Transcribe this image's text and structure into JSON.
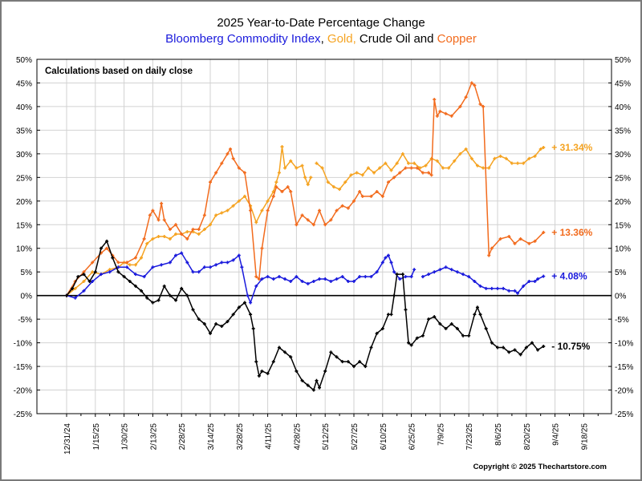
{
  "chart_data": {
    "type": "line",
    "title": "2025 Year-to-Date Percentage Change",
    "subtitle_parts": [
      {
        "text": "Bloomberg Commodity Index",
        "color": "#1a1adc"
      },
      {
        "text": ", ",
        "color": "#000000"
      },
      {
        "text": "Gold,",
        "color": "#f5a321"
      },
      {
        "text": " Crude Oil and ",
        "color": "#000000"
      },
      {
        "text": "Copper",
        "color": "#f26b1d"
      }
    ],
    "annotation": "Calculations based on daily close",
    "copyright": "Copyright © 2025 Thechartstore.com",
    "xlabel": "",
    "ylabel": "",
    "x_unit": "trading days since 12/31/24",
    "xlim": [
      -10,
      190
    ],
    "ylim": [
      -25,
      50
    ],
    "grid": true,
    "y_ticks": [
      "50%",
      "45%",
      "40%",
      "35%",
      "30%",
      "25%",
      "20%",
      "15%",
      "10%",
      "5%",
      "0%",
      "-5%",
      "-10%",
      "-15%",
      "-20%",
      "-25%"
    ],
    "x_tick_labels": [
      "12/31/24",
      "1/15/25",
      "1/30/25",
      "2/13/25",
      "2/28/25",
      "3/14/25",
      "3/28/25",
      "4/11/25",
      "4/28/25",
      "5/12/25",
      "5/27/25",
      "6/10/25",
      "6/25/25",
      "7/9/25",
      "7/23/25",
      "8/6/25",
      "8/20/25",
      "9/4/25",
      "9/18/25"
    ],
    "series": [
      {
        "name": "Gold",
        "color": "#f5a321",
        "end_label": "+ 31.34%",
        "x": [
          0,
          3,
          6,
          9,
          12,
          15,
          18,
          20,
          22,
          24,
          26,
          28,
          30,
          32,
          34,
          36,
          38,
          40,
          42,
          44,
          46,
          48,
          50,
          52,
          54,
          56,
          58,
          60,
          62,
          64,
          66,
          68,
          70,
          72,
          73,
          74,
          75,
          76,
          78,
          80,
          82,
          83,
          84,
          85,
          null,
          87,
          89,
          91,
          93,
          95,
          97,
          99,
          101,
          103,
          105,
          107,
          109,
          111,
          113,
          115,
          117,
          119,
          121,
          123,
          125,
          127,
          129,
          131,
          133,
          135,
          137,
          139,
          141,
          143,
          145,
          147,
          149,
          151,
          153,
          155,
          157,
          159,
          161,
          163,
          165,
          166
        ],
        "y": [
          0,
          1.5,
          3,
          5,
          4.5,
          5.5,
          6,
          7,
          6.5,
          6.5,
          8,
          11,
          12,
          12.5,
          12.5,
          12,
          13,
          13,
          13.5,
          13.5,
          13,
          14,
          15,
          17,
          17.5,
          18,
          19,
          20,
          21,
          19,
          15.5,
          18,
          20,
          22,
          24,
          26,
          31.5,
          27,
          28.5,
          27,
          27.5,
          25,
          23.5,
          25,
          null,
          28,
          27,
          24,
          23,
          22.5,
          24,
          25.5,
          26,
          25.5,
          27,
          26,
          27,
          28,
          26.5,
          28,
          30,
          28,
          28,
          27,
          27.5,
          29,
          28.5,
          27,
          27,
          28.5,
          30,
          31,
          29,
          27.5,
          27,
          27,
          29,
          29.5,
          29,
          28,
          28,
          28,
          29,
          29.5,
          31,
          31.34
        ]
      },
      {
        "name": "Copper",
        "color": "#f26b1d",
        "end_label": "+ 13.36%",
        "x": [
          0,
          3,
          6,
          9,
          12,
          14,
          16,
          18,
          21,
          24,
          27,
          29,
          30,
          32,
          33,
          34,
          36,
          38,
          40,
          42,
          44,
          46,
          48,
          50,
          52,
          54,
          56,
          57,
          58,
          60,
          62,
          64,
          66,
          67,
          68,
          70,
          72,
          73,
          75,
          77,
          78,
          80,
          82,
          84,
          86,
          88,
          90,
          92,
          94,
          96,
          98,
          100,
          102,
          103,
          106,
          108,
          110,
          112,
          114,
          116,
          118,
          120,
          122,
          124,
          126,
          127,
          128,
          129,
          130,
          132,
          134,
          137,
          139,
          141,
          142,
          144,
          145,
          147,
          148,
          151,
          154,
          156,
          158,
          161,
          163,
          166
        ],
        "y": [
          0,
          3,
          5,
          7,
          9,
          10,
          8.5,
          7,
          7,
          8,
          12,
          17,
          18,
          16,
          19.5,
          16,
          14,
          15,
          13,
          12,
          14,
          14,
          17,
          24,
          26,
          28,
          30,
          31,
          29,
          27,
          26,
          18,
          4,
          3.5,
          10,
          18,
          21,
          23,
          22,
          23,
          22,
          15,
          17,
          16,
          15,
          18,
          15,
          16,
          18,
          19,
          18.5,
          20,
          22,
          21,
          21,
          22,
          21,
          24,
          25,
          26,
          27,
          27,
          27,
          26,
          26,
          25.5,
          41.5,
          38,
          39,
          38.5,
          38,
          40,
          42,
          45,
          44.5,
          40.5,
          40,
          8.5,
          10,
          12,
          12.5,
          11,
          12,
          11,
          11.5,
          13.36
        ]
      },
      {
        "name": "Bloomberg Commodity Index",
        "color": "#1a1adc",
        "end_label": "+ 4.08%",
        "x": [
          0,
          3,
          6,
          9,
          12,
          15,
          18,
          21,
          24,
          27,
          30,
          33,
          36,
          38,
          40,
          42,
          44,
          46,
          48,
          50,
          52,
          54,
          56,
          58,
          60,
          61,
          63,
          64,
          66,
          68,
          70,
          72,
          74,
          76,
          78,
          80,
          82,
          84,
          86,
          88,
          90,
          92,
          94,
          96,
          98,
          100,
          102,
          104,
          106,
          108,
          110,
          111,
          112,
          113,
          114,
          116,
          118,
          120,
          121,
          null,
          124,
          126,
          128,
          130,
          132,
          134,
          136,
          138,
          140,
          142,
          144,
          146,
          148,
          150,
          152,
          154,
          156,
          157,
          159,
          161,
          163,
          164,
          166
        ],
        "y": [
          0,
          -0.5,
          1,
          3,
          4.5,
          5,
          6,
          6,
          4.5,
          4,
          6,
          6.5,
          7,
          8.5,
          9,
          7,
          5,
          5,
          6,
          6,
          6.5,
          7,
          7,
          7.5,
          8.5,
          6,
          0,
          -1.5,
          2,
          3.5,
          4,
          3.5,
          4,
          3.5,
          3,
          4,
          3,
          2.5,
          3,
          3.5,
          3.5,
          3,
          3.5,
          4,
          3,
          3,
          4,
          4,
          4,
          5,
          7,
          8,
          8.5,
          7,
          5,
          3.5,
          4,
          4,
          5.5,
          null,
          4,
          4.5,
          5,
          5.5,
          6,
          5.5,
          5,
          4.5,
          4,
          3,
          2,
          1.5,
          1.5,
          1.5,
          1.5,
          1,
          1,
          0.5,
          2,
          3,
          3,
          3.5,
          4.08
        ]
      },
      {
        "name": "Crude Oil",
        "color": "#000000",
        "end_label": "- 10.75%",
        "x": [
          0,
          2,
          4,
          6,
          8,
          10,
          12,
          14,
          16,
          18,
          20,
          22,
          24,
          26,
          28,
          30,
          32,
          34,
          36,
          38,
          40,
          42,
          44,
          46,
          48,
          50,
          52,
          54,
          56,
          58,
          60,
          62,
          64,
          65,
          66,
          67,
          68,
          70,
          72,
          74,
          76,
          78,
          80,
          82,
          84,
          86,
          87,
          88,
          90,
          92,
          94,
          96,
          98,
          100,
          102,
          104,
          106,
          108,
          110,
          112,
          113,
          114,
          115,
          117,
          118,
          119,
          120,
          122,
          124,
          126,
          128,
          130,
          132,
          134,
          136,
          138,
          140,
          142,
          143,
          144,
          146,
          148,
          150,
          152,
          154,
          156,
          158,
          160,
          162,
          164,
          166
        ],
        "y": [
          0,
          1.5,
          4,
          4.5,
          3,
          5,
          10,
          11.5,
          8,
          5,
          4,
          3,
          2,
          1,
          -0.5,
          -1.5,
          -1,
          2,
          0,
          -1,
          1.5,
          0,
          -3,
          -5,
          -6,
          -8,
          -6,
          -6.5,
          -5.5,
          -4,
          -2.5,
          -1.5,
          -4,
          -7,
          -14,
          -17,
          -16,
          -16.5,
          -14,
          -11,
          -12,
          -13,
          -16,
          -18,
          -19,
          -20,
          -18,
          -19.5,
          -16,
          -12,
          -13,
          -14,
          -14,
          -15,
          -14,
          -15,
          -11,
          -8,
          -7,
          -4,
          -4,
          0,
          4.5,
          4.5,
          -3,
          -10,
          -10.5,
          -9,
          -8.5,
          -5,
          -4.5,
          -6,
          -7,
          -6,
          -7,
          -8.5,
          -8.5,
          -4,
          -2.5,
          -4,
          -7,
          -10,
          -11,
          -11,
          -12,
          -11.5,
          -12.5,
          -11,
          -10,
          -11.5,
          -10.75
        ]
      }
    ]
  }
}
